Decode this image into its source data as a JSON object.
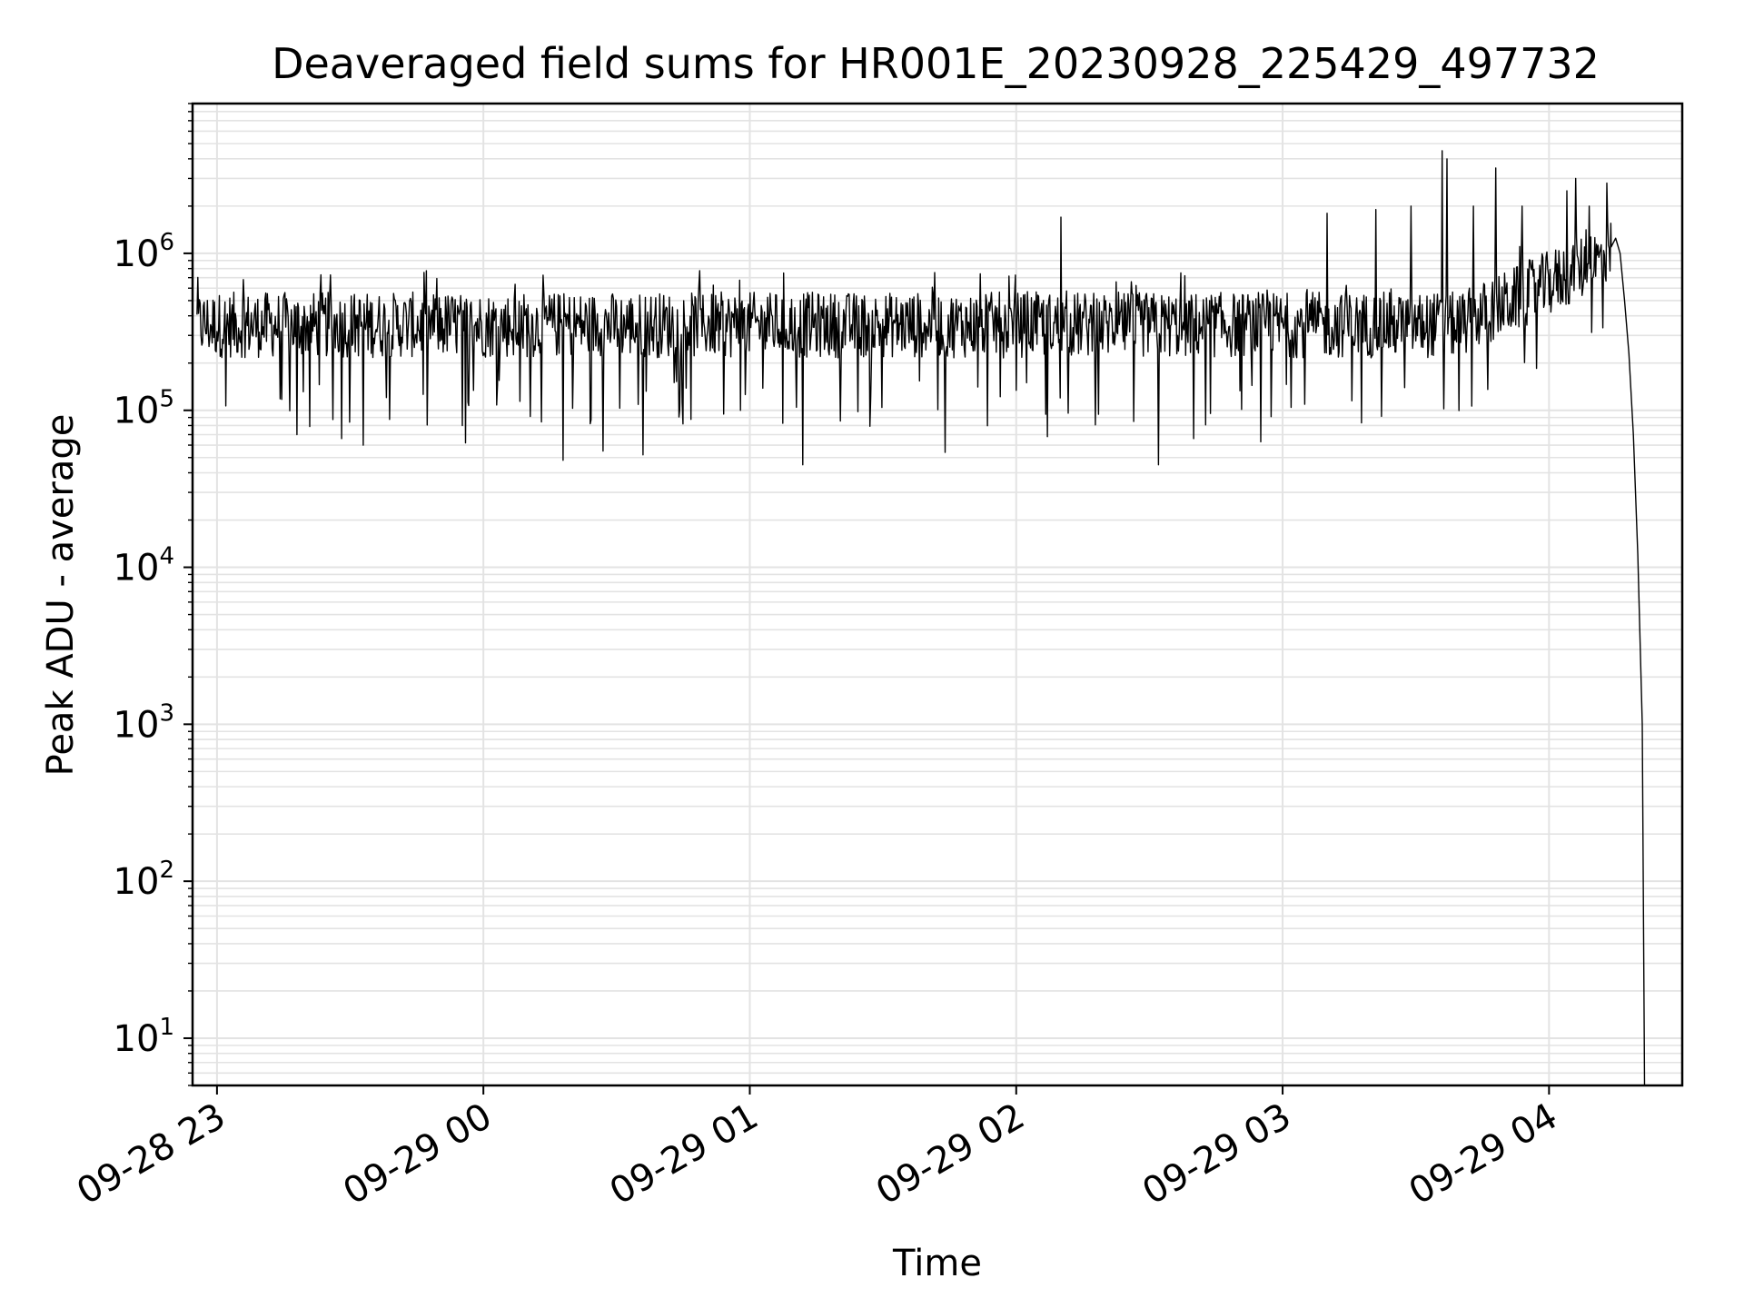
{
  "chart_data": {
    "type": "line",
    "title": "Deaveraged field sums for HR001E_20230928_225429_497732",
    "xlabel": "Time",
    "ylabel": "Peak ADU - average",
    "yscale": "log",
    "ylim": [
      5,
      9000000
    ],
    "xlim": [
      "2023-09-28 22:54:30",
      "2023-09-29 04:30:00"
    ],
    "grid": true,
    "legend": "none",
    "x_ticks": [
      {
        "t": "2023-09-28 23:00",
        "label": "09-28 23"
      },
      {
        "t": "2023-09-29 00:00",
        "label": "09-29 00"
      },
      {
        "t": "2023-09-29 01:00",
        "label": "09-29 01"
      },
      {
        "t": "2023-09-29 02:00",
        "label": "09-29 02"
      },
      {
        "t": "2023-09-29 03:00",
        "label": "09-29 03"
      },
      {
        "t": "2023-09-29 04:00",
        "label": "09-29 04"
      }
    ],
    "y_ticks": [
      {
        "v": 10,
        "base": "10",
        "exp": "1"
      },
      {
        "v": 100,
        "base": "10",
        "exp": "2"
      },
      {
        "v": 1000,
        "base": "10",
        "exp": "3"
      },
      {
        "v": 10000,
        "base": "10",
        "exp": "4"
      },
      {
        "v": 100000,
        "base": "10",
        "exp": "5"
      },
      {
        "v": 1000000,
        "base": "10",
        "exp": "6"
      }
    ],
    "series": [
      {
        "color": "#000000",
        "baseline": 350000,
        "spikes": [
          {
            "x": "2023-09-29 02:10",
            "y": 1700000
          },
          {
            "x": "2023-09-29 03:10",
            "y": 1800000
          },
          {
            "x": "2023-09-29 03:21",
            "y": 1900000
          },
          {
            "x": "2023-09-29 03:29",
            "y": 2000000
          },
          {
            "x": "2023-09-29 03:36",
            "y": 4500000
          },
          {
            "x": "2023-09-29 03:37",
            "y": 4000000
          },
          {
            "x": "2023-09-29 03:43",
            "y": 2000000
          },
          {
            "x": "2023-09-29 03:48",
            "y": 3500000
          },
          {
            "x": "2023-09-29 03:54",
            "y": 2000000
          },
          {
            "x": "2023-09-29 04:04",
            "y": 2500000
          },
          {
            "x": "2023-09-29 04:06",
            "y": 3000000
          },
          {
            "x": "2023-09-29 04:09",
            "y": 2000000
          },
          {
            "x": "2023-09-29 04:13",
            "y": 2800000
          }
        ],
        "dips": [
          {
            "x": "2023-09-28 23:18",
            "y": 70000
          },
          {
            "x": "2023-09-28 23:28",
            "y": 66000
          },
          {
            "x": "2023-09-28 23:33",
            "y": 60000
          },
          {
            "x": "2023-09-28 23:56",
            "y": 62000
          },
          {
            "x": "2023-09-29 00:18",
            "y": 48000
          },
          {
            "x": "2023-09-29 00:27",
            "y": 55000
          },
          {
            "x": "2023-09-29 00:36",
            "y": 52000
          },
          {
            "x": "2023-09-29 01:12",
            "y": 45000
          },
          {
            "x": "2023-09-29 01:44",
            "y": 54000
          },
          {
            "x": "2023-09-29 02:07",
            "y": 68000
          },
          {
            "x": "2023-09-29 02:32",
            "y": 45000
          },
          {
            "x": "2023-09-29 02:40",
            "y": 66000
          },
          {
            "x": "2023-09-29 02:55",
            "y": 63000
          }
        ],
        "tail": [
          {
            "x": "2023-09-29 04:14",
            "y": 1100000
          },
          {
            "x": "2023-09-29 04:15",
            "y": 1250000
          },
          {
            "x": "2023-09-29 04:16",
            "y": 1000000
          },
          {
            "x": "2023-09-29 04:17",
            "y": 500000
          },
          {
            "x": "2023-09-29 04:18",
            "y": 230000
          },
          {
            "x": "2023-09-29 04:19",
            "y": 70000
          },
          {
            "x": "2023-09-29 04:20",
            "y": 12000
          },
          {
            "x": "2023-09-29 04:21",
            "y": 1000
          },
          {
            "x": "2023-09-29 04:21:30",
            "y": 5
          }
        ]
      }
    ]
  }
}
